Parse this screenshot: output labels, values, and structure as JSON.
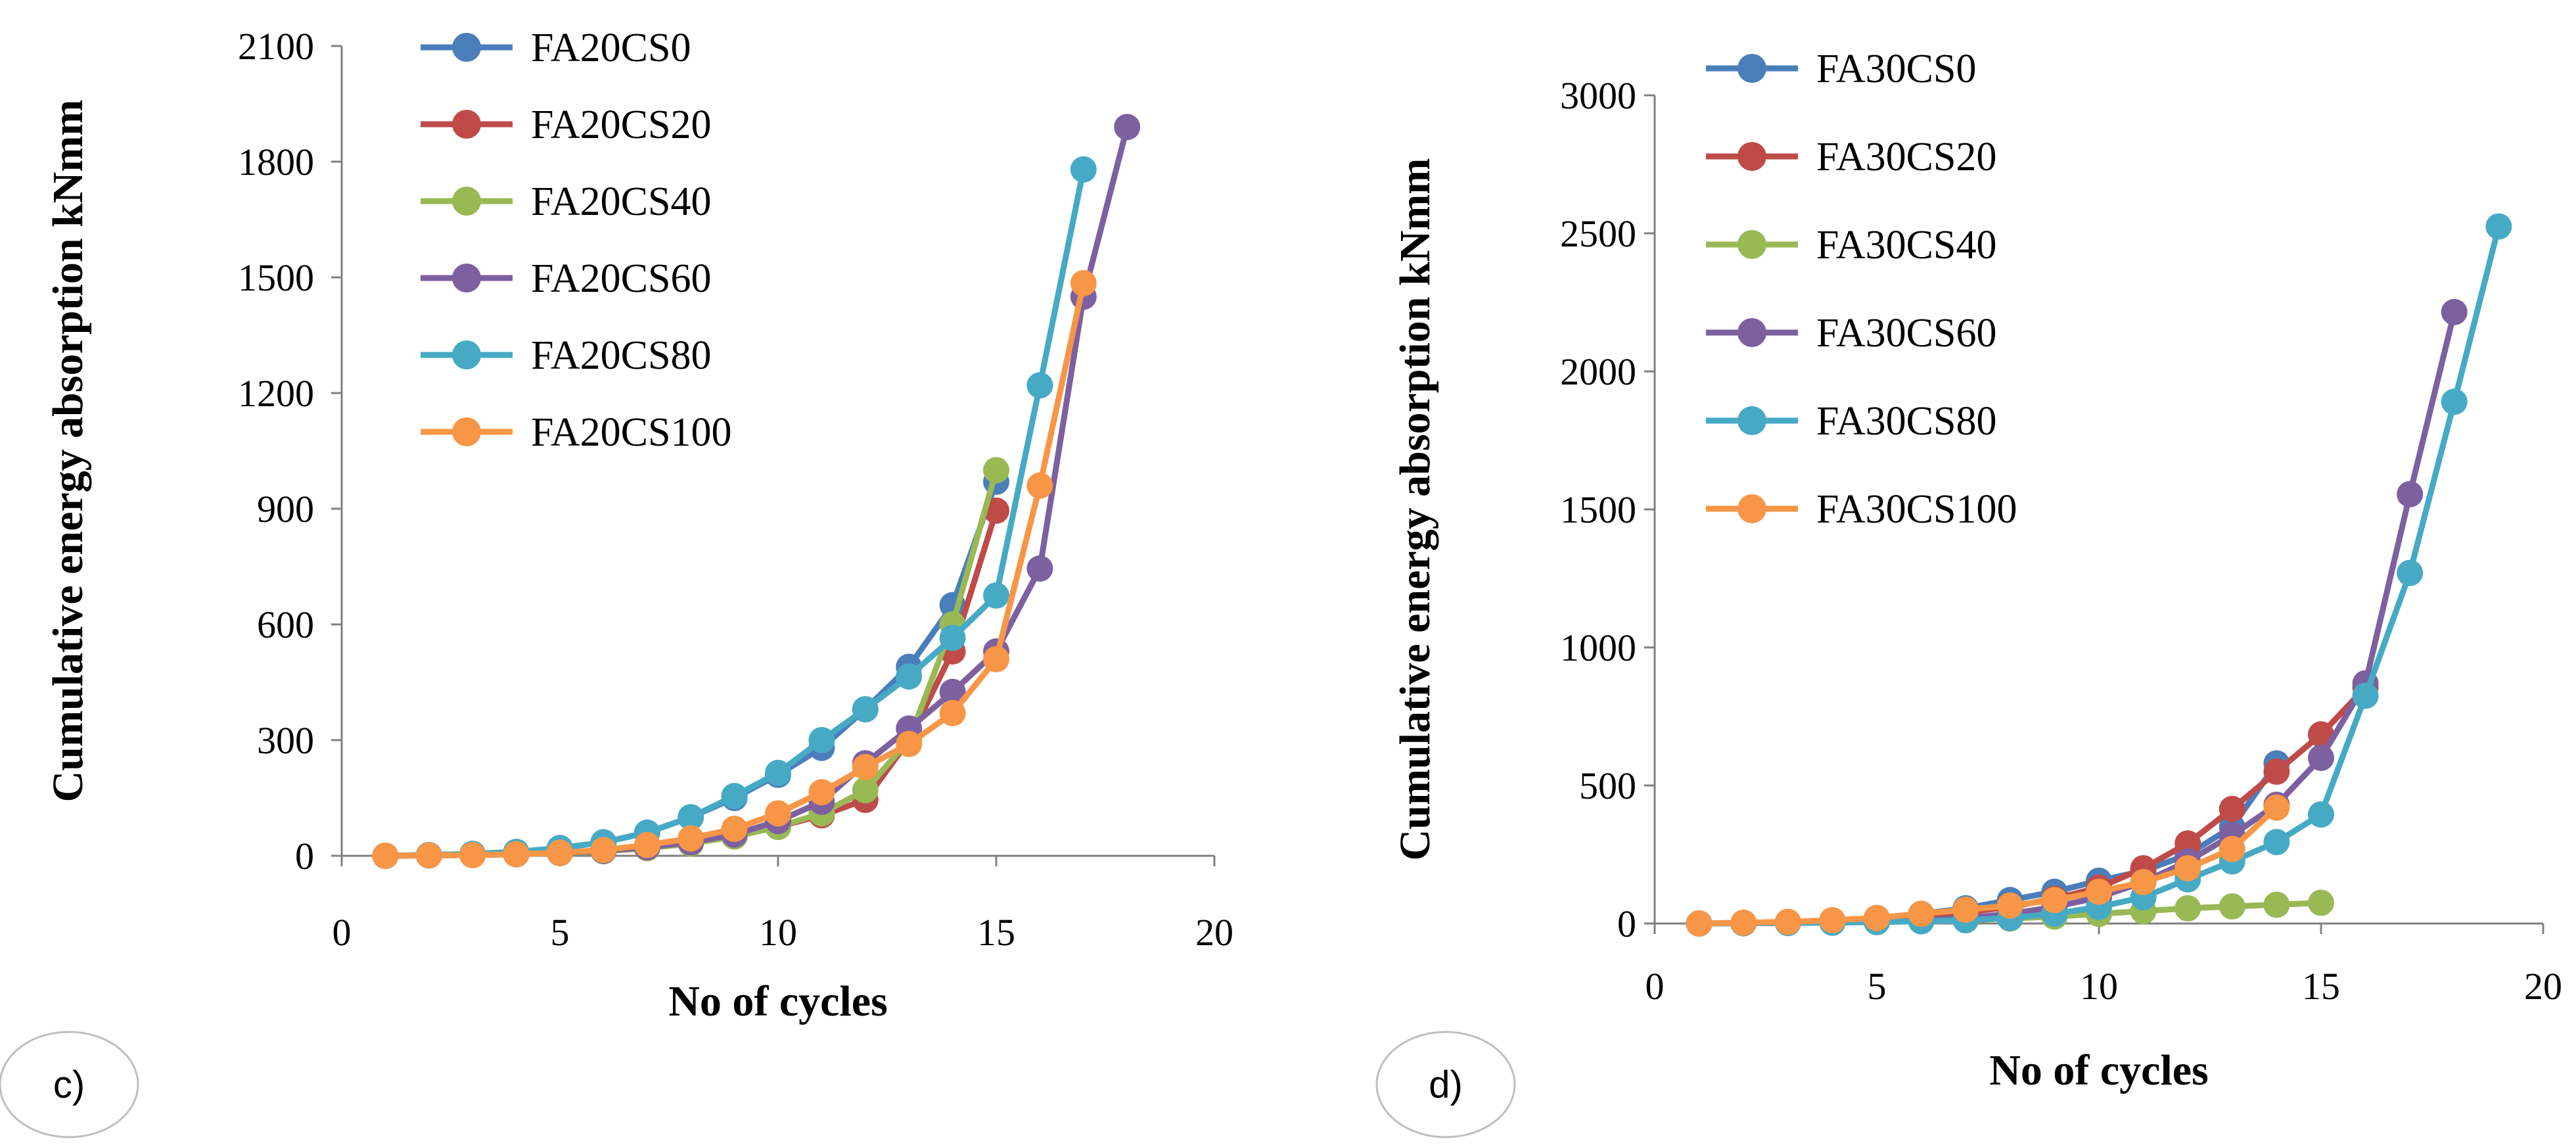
{
  "chart_data": [
    {
      "type": "line",
      "panel_label": "c)",
      "xlabel": "No of cycles",
      "ylabel": "Cumulative energy absorption kNmm",
      "xlim": [
        0,
        20
      ],
      "ylim": [
        0,
        2100
      ],
      "xticks": [
        0,
        5,
        10,
        15,
        20
      ],
      "yticks": [
        0,
        300,
        600,
        900,
        1200,
        1500,
        1800,
        2100
      ],
      "grid": false,
      "legend": "top-left",
      "series": [
        {
          "name": "FA20CS0",
          "color": "#4a7ebb",
          "x": [
            1,
            2,
            3,
            4,
            5,
            6,
            7,
            8,
            9,
            10,
            11,
            12,
            13,
            14,
            15
          ],
          "y": [
            0,
            2,
            5,
            10,
            20,
            35,
            60,
            100,
            150,
            210,
            280,
            380,
            490,
            650,
            970
          ]
        },
        {
          "name": "FA20CS20",
          "color": "#be4b48",
          "x": [
            1,
            2,
            3,
            4,
            5,
            6,
            7,
            8,
            9,
            10,
            11,
            12,
            13,
            14,
            15
          ],
          "y": [
            0,
            1,
            2,
            4,
            7,
            12,
            20,
            32,
            50,
            75,
            105,
            145,
            300,
            530,
            895
          ]
        },
        {
          "name": "FA20CS40",
          "color": "#98b954",
          "x": [
            1,
            2,
            3,
            4,
            5,
            6,
            7,
            8,
            9,
            10,
            11,
            12,
            13,
            14,
            15
          ],
          "y": [
            0,
            1,
            2,
            4,
            7,
            12,
            20,
            32,
            50,
            75,
            110,
            170,
            300,
            600,
            1000
          ]
        },
        {
          "name": "FA20CS60",
          "color": "#7d60a0",
          "x": [
            1,
            2,
            3,
            4,
            5,
            6,
            7,
            8,
            9,
            10,
            11,
            12,
            13,
            14,
            15,
            16,
            17,
            18
          ],
          "y": [
            0,
            1,
            2,
            4,
            8,
            13,
            22,
            35,
            55,
            90,
            140,
            240,
            330,
            425,
            530,
            745,
            1450,
            1890
          ]
        },
        {
          "name": "FA20CS80",
          "color": "#46aac5",
          "x": [
            1,
            2,
            3,
            4,
            5,
            6,
            7,
            8,
            9,
            10,
            11,
            12,
            13,
            14,
            15,
            16,
            17
          ],
          "y": [
            0,
            2,
            5,
            10,
            20,
            35,
            60,
            100,
            155,
            215,
            300,
            380,
            465,
            565,
            675,
            1220,
            1780
          ]
        },
        {
          "name": "FA20CS100",
          "color": "#f79646",
          "x": [
            1,
            2,
            3,
            4,
            5,
            6,
            7,
            8,
            9,
            10,
            11,
            12,
            13,
            14,
            15,
            16,
            17
          ],
          "y": [
            0,
            1,
            2,
            4,
            8,
            15,
            28,
            45,
            70,
            110,
            165,
            230,
            290,
            370,
            510,
            960,
            1485
          ]
        }
      ]
    },
    {
      "type": "line",
      "panel_label": "d)",
      "xlabel": "No of cycles",
      "ylabel": "Cumulative energy absorption kNmm",
      "xlim": [
        0,
        20
      ],
      "ylim": [
        0,
        3000
      ],
      "xticks": [
        0,
        5,
        10,
        15,
        20
      ],
      "yticks": [
        0,
        500,
        1000,
        1500,
        2000,
        2500,
        3000
      ],
      "grid": false,
      "legend": "top-left",
      "series": [
        {
          "name": "FA30CS0",
          "color": "#4a7ebb",
          "x": [
            1,
            2,
            3,
            4,
            5,
            6,
            7,
            8,
            9,
            10,
            11,
            12,
            13,
            14
          ],
          "y": [
            0,
            2,
            5,
            10,
            20,
            35,
            55,
            85,
            115,
            155,
            190,
            250,
            350,
            580
          ]
        },
        {
          "name": "FA30CS20",
          "color": "#be4b48",
          "x": [
            1,
            2,
            3,
            4,
            5,
            6,
            7,
            8,
            9,
            10,
            11,
            12,
            13,
            14,
            15,
            16
          ],
          "y": [
            0,
            2,
            4,
            8,
            15,
            25,
            40,
            60,
            90,
            130,
            200,
            290,
            415,
            550,
            685,
            855
          ]
        },
        {
          "name": "FA30CS40",
          "color": "#98b954",
          "x": [
            1,
            2,
            3,
            4,
            5,
            6,
            7,
            8,
            9,
            10,
            11,
            12,
            13,
            14,
            15
          ],
          "y": [
            0,
            1,
            2,
            4,
            6,
            9,
            12,
            18,
            25,
            35,
            45,
            55,
            62,
            68,
            75
          ]
        },
        {
          "name": "FA30CS60",
          "color": "#7d60a0",
          "x": [
            1,
            2,
            3,
            4,
            5,
            6,
            7,
            8,
            9,
            10,
            11,
            12,
            13,
            14,
            15,
            16,
            17,
            18
          ],
          "y": [
            0,
            1,
            2,
            4,
            7,
            12,
            20,
            35,
            60,
            95,
            150,
            225,
            320,
            430,
            600,
            870,
            1555,
            2215
          ]
        },
        {
          "name": "FA30CS80",
          "color": "#46aac5",
          "x": [
            1,
            2,
            3,
            4,
            5,
            6,
            7,
            8,
            9,
            10,
            11,
            12,
            13,
            14,
            15,
            16,
            17,
            18,
            19
          ],
          "y": [
            0,
            1,
            2,
            3,
            5,
            8,
            12,
            20,
            35,
            60,
            95,
            160,
            225,
            295,
            395,
            825,
            1270,
            1890,
            2525
          ]
        },
        {
          "name": "FA30CS100",
          "color": "#f79646",
          "x": [
            1,
            2,
            3,
            4,
            5,
            6,
            7,
            8,
            9,
            10,
            11,
            12,
            13,
            14
          ],
          "y": [
            0,
            3,
            6,
            12,
            20,
            35,
            50,
            65,
            85,
            115,
            150,
            200,
            270,
            420
          ]
        }
      ]
    }
  ]
}
